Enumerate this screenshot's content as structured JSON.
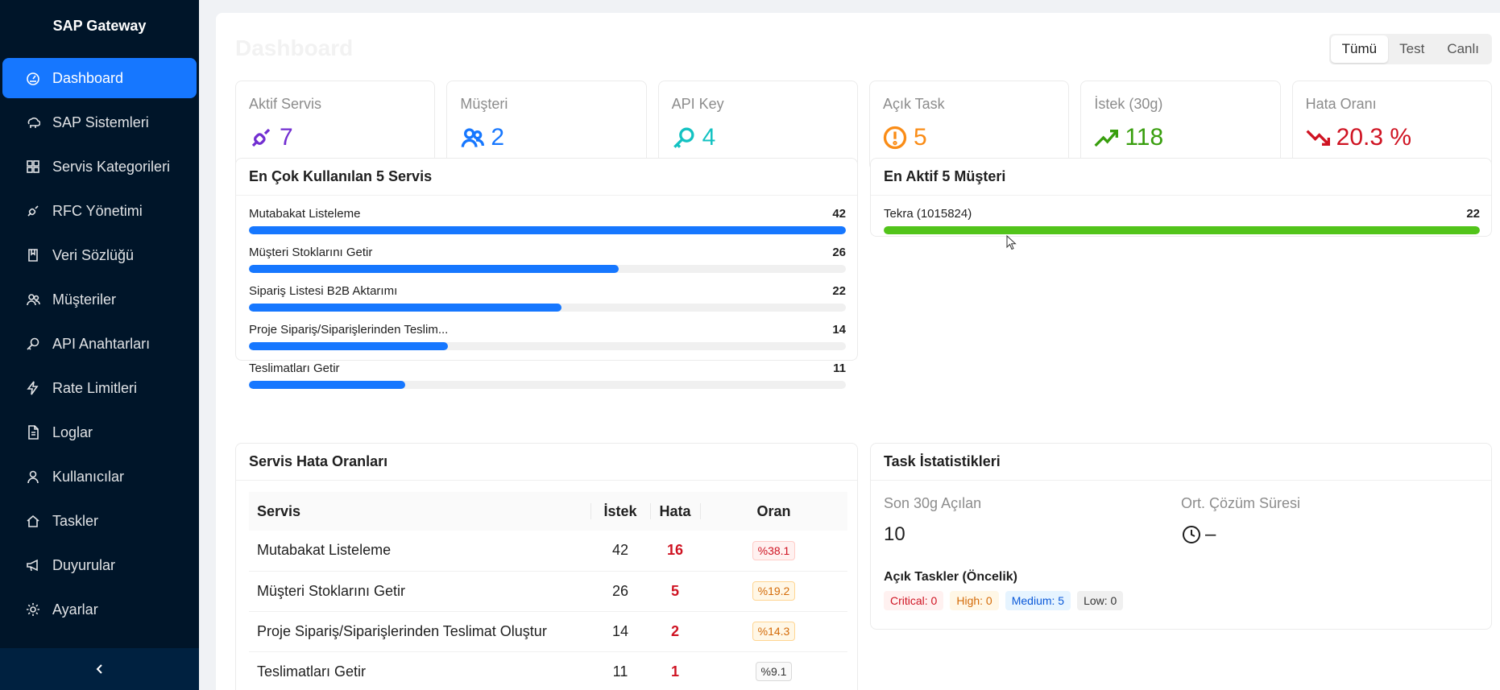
{
  "app": {
    "title": "SAP Gateway"
  },
  "sidebar": {
    "items": [
      {
        "label": "Dashboard",
        "icon": "dashboard-icon"
      },
      {
        "label": "SAP Sistemleri",
        "icon": "cloud-server-icon"
      },
      {
        "label": "Servis Kategorileri",
        "icon": "appstore-icon"
      },
      {
        "label": "RFC Yönetimi",
        "icon": "api-icon"
      },
      {
        "label": "Veri Sözlüğü",
        "icon": "book-icon"
      },
      {
        "label": "Müşteriler",
        "icon": "team-icon"
      },
      {
        "label": "API Anahtarları",
        "icon": "key-icon"
      },
      {
        "label": "Rate Limitleri",
        "icon": "thunderbolt-icon"
      },
      {
        "label": "Loglar",
        "icon": "file-text-icon"
      },
      {
        "label": "Kullanıcılar",
        "icon": "user-icon"
      },
      {
        "label": "Taskler",
        "icon": "home-icon"
      },
      {
        "label": "Duyurular",
        "icon": "notification-icon"
      },
      {
        "label": "Ayarlar",
        "icon": "setting-icon"
      }
    ],
    "active_index": 0
  },
  "header": {
    "title": "Dashboard",
    "env_options": [
      "Tümü",
      "Test",
      "Canlı"
    ],
    "env_selected": "Tümü"
  },
  "stats": [
    {
      "label": "Aktif Servis",
      "value": "7",
      "icon": "api-icon",
      "color": "#722ed1"
    },
    {
      "label": "Müşteri",
      "value": "2",
      "icon": "team-icon",
      "color": "#1677ff"
    },
    {
      "label": "API Key",
      "value": "4",
      "icon": "key-icon",
      "color": "#13c2c2"
    },
    {
      "label": "Açık Task",
      "value": "5",
      "icon": "exclamation-circle-icon",
      "color": "#fa8c16"
    },
    {
      "label": "İstek (30g)",
      "value": "118",
      "icon": "rise-icon",
      "color": "#389e0d"
    },
    {
      "label": "Hata Oranı",
      "value": "20.3 %",
      "icon": "fall-icon",
      "color": "#cf1322"
    }
  ],
  "top_services": {
    "title": "En Çok Kullanılan 5 Servis",
    "max": 42,
    "items": [
      {
        "name": "Mutabakat Listeleme",
        "count": 42
      },
      {
        "name": "Müşteri Stoklarını Getir",
        "count": 26
      },
      {
        "name": "Sipariş Listesi B2B Aktarımı",
        "count": 22
      },
      {
        "name": "Proje Sipariş/Siparişlerinden Teslim...",
        "count": 14
      },
      {
        "name": "Teslimatları Getir",
        "count": 11
      }
    ],
    "bar_color": "#1677ff"
  },
  "top_customers": {
    "title": "En Aktif 5 Müşteri",
    "max": 22,
    "items": [
      {
        "name": "Tekra (1015824)",
        "count": 22
      }
    ],
    "bar_color": "#52c41a"
  },
  "error_rates": {
    "title": "Servis Hata Oranları",
    "columns": [
      "Servis",
      "İstek",
      "Hata",
      "Oran"
    ],
    "rows": [
      {
        "service": "Mutabakat Listeleme",
        "requests": "42",
        "errors": "16",
        "rate": "%38.1",
        "level": "red"
      },
      {
        "service": "Müşteri Stoklarını Getir",
        "requests": "26",
        "errors": "5",
        "rate": "%19.2",
        "level": "orange"
      },
      {
        "service": "Proje Sipariş/Siparişlerinden Teslimat Oluştur",
        "requests": "14",
        "errors": "2",
        "rate": "%14.3",
        "level": "orange"
      },
      {
        "service": "Teslimatları Getir",
        "requests": "11",
        "errors": "1",
        "rate": "%9.1",
        "level": "gray"
      }
    ]
  },
  "task_stats": {
    "title": "Task İstatistikleri",
    "opened_label": "Son 30g Açılan",
    "opened_value": "10",
    "avg_label": "Ort. Çözüm Süresi",
    "avg_value": "–",
    "priority_title": "Açık Taskler (Öncelik)",
    "priorities": {
      "critical": "Critical: 0",
      "high": "High: 0",
      "medium": "Medium: 5",
      "low": "Low: 0"
    }
  }
}
